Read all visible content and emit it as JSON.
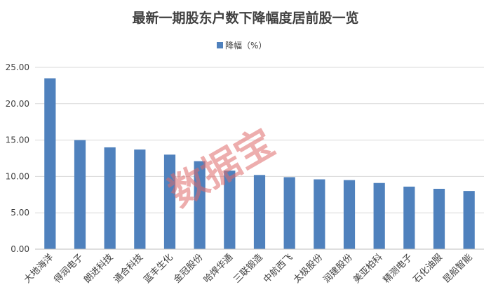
{
  "chart_data": {
    "type": "bar",
    "title": "最新一期股东户数下降幅度居前股一览",
    "categories": [
      "大地海洋",
      "得润电子",
      "朗进科技",
      "通合科技",
      "蓝丰生化",
      "金冠股份",
      "哈焊华通",
      "三联锻造",
      "中航西飞",
      "太极股份",
      "润建股份",
      "美亚柏科",
      "精测电子",
      "石化油服",
      "昆船智能"
    ],
    "series": [
      {
        "name": "降幅（%）",
        "values": [
          23.5,
          15.0,
          14.0,
          13.7,
          13.0,
          12.1,
          10.8,
          10.2,
          9.9,
          9.6,
          9.5,
          9.1,
          8.6,
          8.3,
          8.0
        ]
      }
    ],
    "ylim": [
      0,
      25
    ],
    "yticks": [
      "0.00",
      "5.00",
      "10.00",
      "15.00",
      "20.00",
      "25.00"
    ],
    "legend_position": "top-center",
    "grid": true,
    "bar_color": "#4f81bd",
    "grid_color": "#d9d9d9"
  },
  "watermark": "数据宝"
}
